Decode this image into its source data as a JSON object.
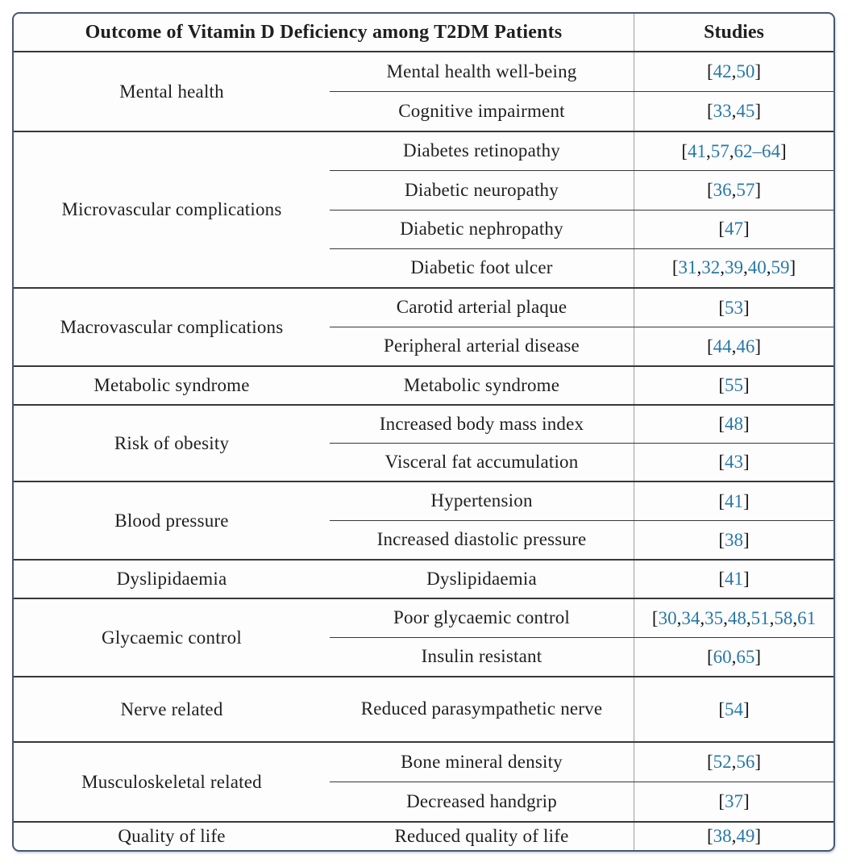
{
  "header": {
    "outcome_label": "Outcome of Vitamin D Deficiency among T2DM Patients",
    "studies_label": "Studies"
  },
  "groups": [
    {
      "category": "Mental health",
      "rows": [
        {
          "outcome": "Mental health well-being",
          "studies": "[42,50]"
        },
        {
          "outcome": "Cognitive impairment",
          "studies": "[33,45]"
        }
      ]
    },
    {
      "category": "Microvascular complications",
      "rows": [
        {
          "outcome": "Diabetes retinopathy",
          "studies": "[41,57,62–64]"
        },
        {
          "outcome": "Diabetic neuropathy",
          "studies": "[36,57]"
        },
        {
          "outcome": "Diabetic nephropathy",
          "studies": "[47]"
        },
        {
          "outcome": "Diabetic foot ulcer",
          "studies": "[31,32,39,40,59]"
        }
      ]
    },
    {
      "category": "Macrovascular complications",
      "rows": [
        {
          "outcome": "Carotid arterial plaque",
          "studies": "[53]"
        },
        {
          "outcome": "Peripheral arterial disease",
          "studies": "[44,46]"
        }
      ]
    },
    {
      "category": "Metabolic syndrome",
      "rows": [
        {
          "outcome": "Metabolic syndrome",
          "studies": "[55]"
        }
      ]
    },
    {
      "category": "Risk of obesity",
      "rows": [
        {
          "outcome": "Increased body mass index",
          "studies": "[48]"
        },
        {
          "outcome": "Visceral fat accumulation",
          "studies": "[43]"
        }
      ]
    },
    {
      "category": "Blood pressure",
      "rows": [
        {
          "outcome": "Hypertension",
          "studies": "[41]"
        },
        {
          "outcome": "Increased diastolic pressure",
          "studies": "[38]"
        }
      ]
    },
    {
      "category": "Dyslipidaemia",
      "rows": [
        {
          "outcome": "Dyslipidaemia",
          "studies": "[41]"
        }
      ]
    },
    {
      "category": "Glycaemic control",
      "rows": [
        {
          "outcome": "Poor glycaemic control",
          "studies": "[30,34,35,48,51,58,61"
        },
        {
          "outcome": "Insulin resistant",
          "studies": "[60,65]"
        }
      ]
    },
    {
      "category": "Nerve related",
      "rows": [
        {
          "outcome": "Reduced parasympathetic nerve",
          "studies": "[54]"
        }
      ]
    },
    {
      "category": "Musculoskeletal related",
      "rows": [
        {
          "outcome": "Bone mineral density",
          "studies": "[52,56]"
        },
        {
          "outcome": "Decreased handgrip",
          "studies": "[37]"
        }
      ]
    },
    {
      "category": "Quality of life",
      "rows": [
        {
          "outcome": "Reduced quality of life",
          "studies": "[38,49]"
        }
      ]
    }
  ],
  "colors": {
    "citation_blue": "#2878a8",
    "frame_border": "#475873",
    "rule_dark": "#383838",
    "rule_gray": "#9e9e9e",
    "text": "#1f1f1f"
  }
}
